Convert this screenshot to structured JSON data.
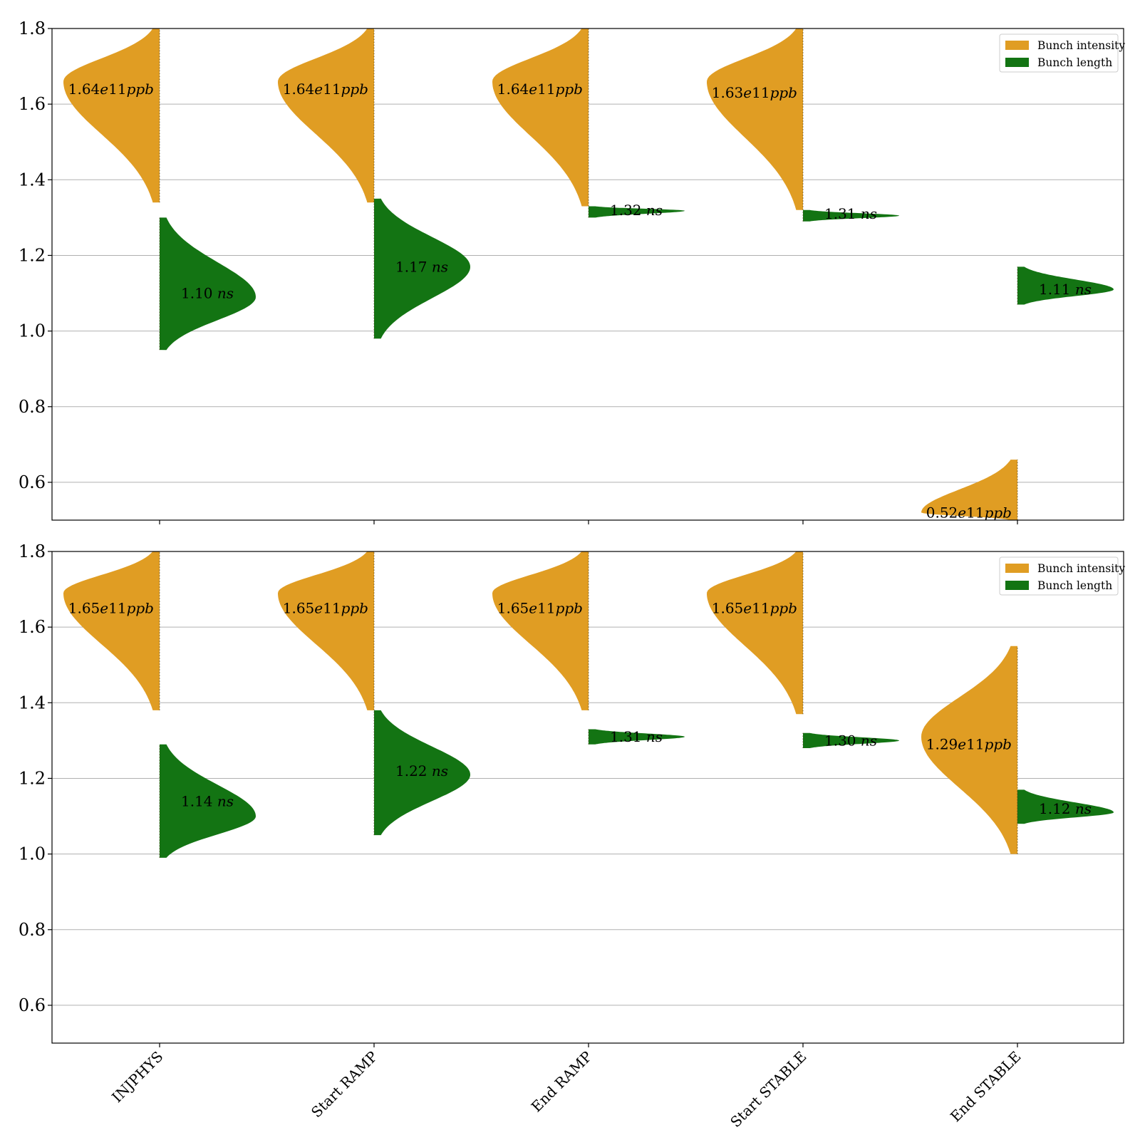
{
  "colors": {
    "intensity": "#e09d23",
    "length": "#137413",
    "grid": "#b0b0b0",
    "frame": "#000000"
  },
  "chart_data": [
    {
      "type": "violin",
      "title": "",
      "xlabel": "",
      "ylabel": "",
      "ylim": [
        0.5,
        1.8
      ],
      "yticks": [
        "0.6",
        "0.8",
        "1.0",
        "1.2",
        "1.4",
        "1.6",
        "1.8"
      ],
      "categories": [
        "INJPHYS",
        "Start RAMP",
        "End RAMP",
        "Start STABLE",
        "End STABLE"
      ],
      "grid": "horizontal",
      "legend": {
        "position": "top-right",
        "entries": [
          "Bunch intensity",
          "Bunch length"
        ]
      },
      "series": [
        {
          "name": "Bunch intensity",
          "side": "left",
          "range": [
            [
              1.34,
              1.8
            ],
            [
              1.34,
              1.8
            ],
            [
              1.33,
              1.8
            ],
            [
              1.32,
              1.8
            ],
            [
              0.5,
              0.66
            ]
          ],
          "peaks": [
            1.66,
            1.66,
            1.66,
            1.66,
            0.52
          ],
          "labels": [
            "1.64e11ppb",
            "1.64e11ppb",
            "1.64e11ppb",
            "1.63e11ppb",
            "0.52e11ppb"
          ],
          "label_values": [
            1.64,
            1.64,
            1.64,
            1.63,
            0.52
          ]
        },
        {
          "name": "Bunch length",
          "side": "right",
          "range": [
            [
              0.95,
              1.3
            ],
            [
              0.98,
              1.35
            ],
            [
              1.3,
              1.33
            ],
            [
              1.29,
              1.32
            ],
            [
              1.07,
              1.17
            ]
          ],
          "peaks": [
            1.09,
            1.17,
            1.318,
            1.305,
            1.11
          ],
          "labels": [
            "1.10 ns",
            "1.17 ns",
            "1.32 ns",
            "1.31 ns",
            "1.11 ns"
          ],
          "label_values": [
            1.1,
            1.17,
            1.32,
            1.31,
            1.11
          ]
        }
      ]
    },
    {
      "type": "violin",
      "title": "",
      "xlabel": "",
      "ylabel": "",
      "ylim": [
        0.5,
        1.8
      ],
      "yticks": [
        "0.6",
        "0.8",
        "1.0",
        "1.2",
        "1.4",
        "1.6",
        "1.8"
      ],
      "categories": [
        "INJPHYS",
        "Start RAMP",
        "End RAMP",
        "Start STABLE",
        "End STABLE"
      ],
      "grid": "horizontal",
      "legend": {
        "position": "top-right",
        "entries": [
          "Bunch intensity",
          "Bunch length"
        ]
      },
      "series": [
        {
          "name": "Bunch intensity",
          "side": "left",
          "range": [
            [
              1.38,
              1.8
            ],
            [
              1.38,
              1.8
            ],
            [
              1.38,
              1.8
            ],
            [
              1.37,
              1.8
            ],
            [
              1.0,
              1.55
            ]
          ],
          "peaks": [
            1.69,
            1.69,
            1.69,
            1.69,
            1.31
          ],
          "labels": [
            "1.65e11ppb",
            "1.65e11ppb",
            "1.65e11ppb",
            "1.65e11ppb",
            "1.29e11ppb"
          ],
          "label_values": [
            1.65,
            1.65,
            1.65,
            1.65,
            1.29
          ]
        },
        {
          "name": "Bunch length",
          "side": "right",
          "range": [
            [
              0.99,
              1.29
            ],
            [
              1.05,
              1.38
            ],
            [
              1.29,
              1.33
            ],
            [
              1.28,
              1.32
            ],
            [
              1.08,
              1.17
            ]
          ],
          "peaks": [
            1.1,
            1.21,
            1.31,
            1.3,
            1.11
          ],
          "labels": [
            "1.14 ns",
            "1.22 ns",
            "1.31 ns",
            "1.30 ns",
            "1.12 ns"
          ],
          "label_values": [
            1.14,
            1.22,
            1.31,
            1.3,
            1.12
          ]
        }
      ]
    }
  ]
}
